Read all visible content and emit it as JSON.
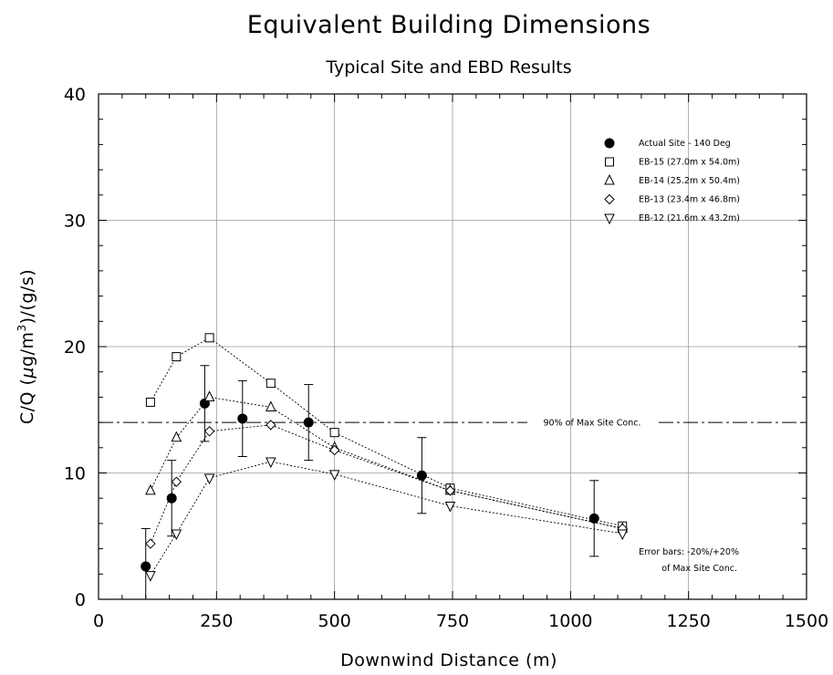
{
  "chart_data": {
    "type": "scatter",
    "title": "Equivalent Building Dimensions",
    "subtitle": "Typical Site and EBD Results",
    "xlabel": "Downwind Distance (m)",
    "ylabel_prefix": "C/Q (",
    "ylabel_mu": "μ",
    "ylabel_mid": "g/m",
    "ylabel_sup": "3",
    "ylabel_suffix": ")/(g/s)",
    "xlim": [
      0,
      1500
    ],
    "ylim": [
      0,
      40
    ],
    "xticks": [
      0,
      250,
      500,
      750,
      1000,
      1250,
      1500
    ],
    "yticks": [
      0,
      10,
      20,
      30,
      40
    ],
    "grid": true,
    "legend_position": "top-right",
    "series": [
      {
        "name": "Actual Site - 140 Deg",
        "marker": "filled-circle",
        "connected": false,
        "x": [
          100,
          155,
          225,
          305,
          445,
          685,
          1050
        ],
        "y": [
          2.6,
          8.0,
          15.5,
          14.3,
          14.0,
          9.8,
          6.4
        ],
        "error_bars": [
          [
            0,
            5.6
          ],
          [
            5.0,
            11.0
          ],
          [
            12.5,
            18.5
          ],
          [
            11.3,
            17.3
          ],
          [
            11.0,
            17.0
          ],
          [
            6.8,
            12.8
          ],
          [
            3.4,
            9.4
          ]
        ]
      },
      {
        "name": "EB-15 (27.0m x 54.0m)",
        "marker": "open-square",
        "connected": true,
        "x": [
          110,
          165,
          235,
          365,
          500,
          745,
          1110
        ],
        "y": [
          15.6,
          19.2,
          20.7,
          17.1,
          13.2,
          8.8,
          5.8
        ]
      },
      {
        "name": "EB-14 (25.2m x 50.4m)",
        "marker": "open-triangle-up",
        "connected": true,
        "x": [
          110,
          165,
          235,
          365,
          500,
          745,
          1110
        ],
        "y": [
          8.6,
          12.8,
          16.0,
          15.2,
          12.0,
          8.6,
          5.6
        ]
      },
      {
        "name": "EB-13 (23.4m x 46.8m)",
        "marker": "open-diamond",
        "connected": true,
        "x": [
          110,
          165,
          235,
          365,
          500,
          745,
          1110
        ],
        "y": [
          4.4,
          9.3,
          13.3,
          13.8,
          11.8,
          8.6,
          5.6
        ]
      },
      {
        "name": "EB-12 (21.6m x 43.2m)",
        "marker": "open-triangle-down",
        "connected": true,
        "x": [
          110,
          165,
          235,
          365,
          500,
          745,
          1110
        ],
        "y": [
          1.9,
          5.2,
          9.6,
          10.9,
          9.9,
          7.4,
          5.2
        ]
      }
    ],
    "reference_line": {
      "y": 14.0,
      "label": "90% of Max Site Conc."
    },
    "annotations": {
      "error_bars_line1": "Error bars: -20%/+20%",
      "error_bars_line2": "of Max Site Conc."
    }
  }
}
